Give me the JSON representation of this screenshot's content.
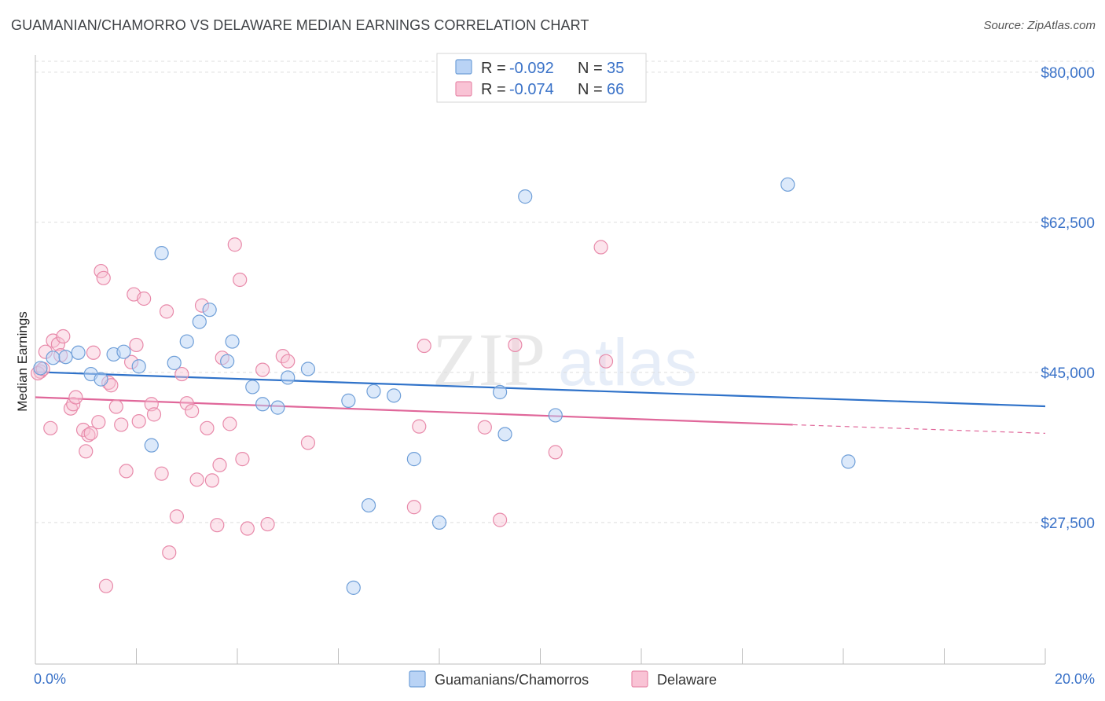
{
  "title": "GUAMANIAN/CHAMORRO VS DELAWARE MEDIAN EARNINGS CORRELATION CHART",
  "source": "Source: ZipAtlas.com",
  "watermark": {
    "zip": "ZIP",
    "atlas": "atlas"
  },
  "colors": {
    "blue_fill": "#b9d3f5",
    "blue_stroke": "#6f9fd8",
    "blue_line": "#2f72c9",
    "pink_fill": "#f9c3d5",
    "pink_stroke": "#e88aaa",
    "pink_line": "#e0679a",
    "tick_text": "#3a72c8",
    "grid": "#dddddd"
  },
  "stats": {
    "series1": {
      "r_label": "R =",
      "r_value": "-0.092",
      "n_label": "N =",
      "n_value": "35"
    },
    "series2": {
      "r_label": "R =",
      "r_value": "-0.074",
      "n_label": "N =",
      "n_value": "66"
    }
  },
  "chart_data": {
    "type": "scatter",
    "title": "GUAMANIAN/CHAMORRO VS DELAWARE MEDIAN EARNINGS CORRELATION CHART",
    "xlabel": "",
    "ylabel": "Median Earnings",
    "xlim": [
      0,
      20
    ],
    "ylim": [
      11000,
      82000
    ],
    "x_unit": "%",
    "y_ticks": [
      27500,
      45000,
      62500,
      80000
    ],
    "y_tick_labels": [
      "$27,500",
      "$45,000",
      "$62,500",
      "$80,000"
    ],
    "x_tick_labels": [
      "0.0%",
      "20.0%"
    ],
    "grid": true,
    "legend_position": "top-center",
    "series": [
      {
        "name": "Guamanians/Chamorros",
        "trend": {
          "x": [
            0,
            20
          ],
          "y": [
            45050,
            41050
          ]
        },
        "points": [
          [
            0.1,
            45500
          ],
          [
            0.35,
            46700
          ],
          [
            0.6,
            46800
          ],
          [
            0.85,
            47300
          ],
          [
            1.1,
            44800
          ],
          [
            1.3,
            44200
          ],
          [
            1.55,
            47100
          ],
          [
            1.75,
            47400
          ],
          [
            2.05,
            45700
          ],
          [
            2.3,
            36500
          ],
          [
            2.5,
            58900
          ],
          [
            2.75,
            46100
          ],
          [
            3.0,
            48600
          ],
          [
            3.25,
            50900
          ],
          [
            3.45,
            52300
          ],
          [
            3.8,
            46300
          ],
          [
            3.9,
            48600
          ],
          [
            4.3,
            43300
          ],
          [
            4.5,
            41300
          ],
          [
            4.8,
            40900
          ],
          [
            5.0,
            44400
          ],
          [
            5.4,
            45400
          ],
          [
            6.2,
            41700
          ],
          [
            6.3,
            19900
          ],
          [
            6.6,
            29500
          ],
          [
            6.7,
            42800
          ],
          [
            7.1,
            42300
          ],
          [
            7.5,
            34900
          ],
          [
            8.0,
            27500
          ],
          [
            9.2,
            42700
          ],
          [
            9.3,
            37800
          ],
          [
            9.7,
            65500
          ],
          [
            10.3,
            40000
          ],
          [
            14.9,
            66900
          ],
          [
            16.1,
            34600
          ]
        ]
      },
      {
        "name": "Delaware",
        "trend": {
          "x": [
            0,
            15
          ],
          "y": [
            42100,
            38900
          ]
        },
        "trend_dashed": {
          "x": [
            15,
            20
          ],
          "y": [
            38900,
            37900
          ]
        },
        "points": [
          [
            0.1,
            45100
          ],
          [
            0.2,
            47400
          ],
          [
            0.3,
            38500
          ],
          [
            0.35,
            48700
          ],
          [
            0.45,
            48300
          ],
          [
            0.5,
            47000
          ],
          [
            0.55,
            49200
          ],
          [
            0.7,
            40800
          ],
          [
            0.75,
            41300
          ],
          [
            0.8,
            42100
          ],
          [
            0.95,
            38300
          ],
          [
            1.0,
            35800
          ],
          [
            1.05,
            37700
          ],
          [
            1.1,
            37900
          ],
          [
            1.15,
            47300
          ],
          [
            1.3,
            56800
          ],
          [
            1.35,
            56000
          ],
          [
            1.45,
            43800
          ],
          [
            1.5,
            43500
          ],
          [
            1.6,
            41000
          ],
          [
            1.7,
            38900
          ],
          [
            1.8,
            33500
          ],
          [
            1.9,
            46200
          ],
          [
            1.95,
            54100
          ],
          [
            2.0,
            48200
          ],
          [
            2.05,
            39300
          ],
          [
            2.15,
            53600
          ],
          [
            2.3,
            41300
          ],
          [
            2.35,
            40100
          ],
          [
            2.5,
            33200
          ],
          [
            2.6,
            52100
          ],
          [
            2.65,
            24000
          ],
          [
            2.8,
            28200
          ],
          [
            2.9,
            44800
          ],
          [
            3.0,
            41400
          ],
          [
            3.1,
            40500
          ],
          [
            3.2,
            32500
          ],
          [
            3.3,
            52800
          ],
          [
            3.4,
            38500
          ],
          [
            3.5,
            32400
          ],
          [
            3.6,
            27200
          ],
          [
            3.65,
            34200
          ],
          [
            3.7,
            46700
          ],
          [
            3.85,
            39000
          ],
          [
            3.95,
            59900
          ],
          [
            4.05,
            55800
          ],
          [
            4.1,
            34900
          ],
          [
            4.2,
            26800
          ],
          [
            4.5,
            45300
          ],
          [
            4.6,
            27300
          ],
          [
            4.9,
            46900
          ],
          [
            5.0,
            46300
          ],
          [
            5.4,
            36800
          ],
          [
            7.5,
            29300
          ],
          [
            7.6,
            38700
          ],
          [
            7.7,
            48100
          ],
          [
            8.9,
            38600
          ],
          [
            9.2,
            27800
          ],
          [
            9.5,
            48200
          ],
          [
            10.3,
            35700
          ],
          [
            11.2,
            59600
          ],
          [
            11.3,
            46300
          ],
          [
            0.05,
            44900
          ],
          [
            0.15,
            45400
          ],
          [
            1.25,
            39200
          ],
          [
            1.4,
            20100
          ]
        ]
      }
    ]
  }
}
